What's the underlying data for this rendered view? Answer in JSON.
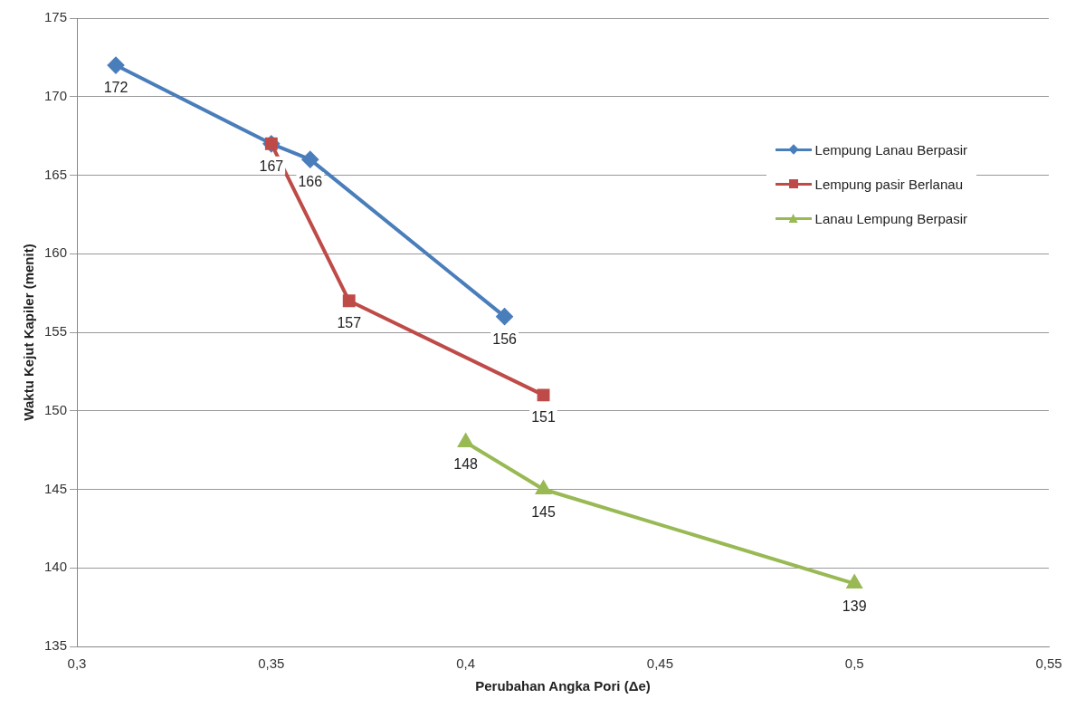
{
  "chart_data": {
    "type": "line",
    "xlabel": "Perubahan Angka Pori (Δe)",
    "ylabel": "Waktu Kejut Kapiler (menit)",
    "series": [
      {
        "name": "Lempung Lanau Berpasir",
        "color": "#4a7ebb",
        "marker": "diamond",
        "x": [
          0.31,
          0.35,
          0.36,
          0.41
        ],
        "values": [
          172,
          167,
          166,
          156
        ],
        "value_labels": [
          "172",
          "167",
          "166",
          "156"
        ]
      },
      {
        "name": "Lempung pasir Berlanau",
        "color": "#be4b48",
        "marker": "square",
        "x": [
          0.35,
          0.37,
          0.42
        ],
        "values": [
          167,
          157,
          151
        ],
        "value_labels": [
          null,
          "157",
          "151"
        ]
      },
      {
        "name": "Lanau Lempung Berpasir",
        "color": "#98b954",
        "marker": "triangle",
        "x": [
          0.4,
          0.42,
          0.5
        ],
        "values": [
          148,
          145,
          139
        ],
        "value_labels": [
          "148",
          "145",
          "139"
        ]
      }
    ],
    "xlim": [
      0.3,
      0.55
    ],
    "xticks": [
      {
        "value": 0.3,
        "label": "0,3"
      },
      {
        "value": 0.35,
        "label": "0,35"
      },
      {
        "value": 0.4,
        "label": "0,4"
      },
      {
        "value": 0.45,
        "label": "0,45"
      },
      {
        "value": 0.5,
        "label": "0,5"
      },
      {
        "value": 0.55,
        "label": "0,55"
      }
    ],
    "ylim": [
      135,
      175
    ],
    "yticks": [
      135,
      140,
      145,
      150,
      155,
      160,
      165,
      170,
      175
    ],
    "grid": "y",
    "legend": "top right",
    "line_style": "solid"
  }
}
